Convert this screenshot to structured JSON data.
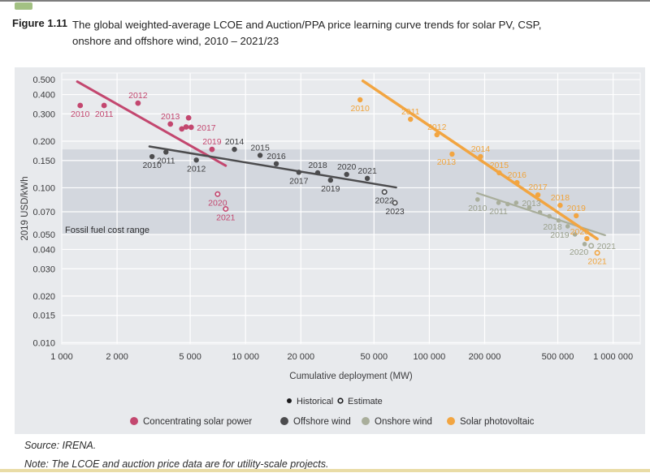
{
  "page": {
    "figure_label": "Figure 1.11",
    "title_line1": "The global weighted-average LCOE and Auction/PPA price learning curve trends for solar PV, CSP,",
    "title_line2": "onshore and offshore wind, 2010 – 2021/23",
    "source": "Source: IRENA.",
    "note": "Note: The LCOE and auction price data are for utility-scale projects."
  },
  "chart_data": {
    "type": "scatter",
    "title": "The global weighted-average LCOE and Auction/PPA price learning curve trends for solar PV, CSP, onshore and offshore wind, 2010 – 2021/23",
    "xlabel": "Cumulative deployment (MW)",
    "ylabel": "2019 USD/kWh",
    "x_scale": "log",
    "y_scale": "log",
    "x_range": [
      1000,
      1405000
    ],
    "y_range": [
      0.0098,
      0.551
    ],
    "grid": true,
    "x_ticks": [
      {
        "v": 1000,
        "label": "1 000"
      },
      {
        "v": 2000,
        "label": "2 000"
      },
      {
        "v": 5000,
        "label": "5 000"
      },
      {
        "v": 10000,
        "label": "10 000"
      },
      {
        "v": 20000,
        "label": "20 000"
      },
      {
        "v": 50000,
        "label": "50 000"
      },
      {
        "v": 100000,
        "label": "100 000"
      },
      {
        "v": 200000,
        "label": "200 000"
      },
      {
        "v": 500000,
        "label": "500 000"
      },
      {
        "v": 1000000,
        "label": "1 000 000"
      }
    ],
    "y_ticks": [
      {
        "v": 0.5,
        "label": "0.500"
      },
      {
        "v": 0.4,
        "label": "0.400"
      },
      {
        "v": 0.3,
        "label": "0.300"
      },
      {
        "v": 0.2,
        "label": "0.200"
      },
      {
        "v": 0.15,
        "label": "0.150"
      },
      {
        "v": 0.1,
        "label": "0.100"
      },
      {
        "v": 0.07,
        "label": "0.070"
      },
      {
        "v": 0.05,
        "label": "0.050"
      },
      {
        "v": 0.04,
        "label": "0.040"
      },
      {
        "v": 0.03,
        "label": "0.030"
      },
      {
        "v": 0.02,
        "label": "0.020"
      },
      {
        "v": 0.015,
        "label": "0.015"
      },
      {
        "v": 0.01,
        "label": "0.010"
      }
    ],
    "fossil_band": {
      "min": 0.05,
      "max": 0.177,
      "label": "Fossil fuel cost range",
      "color": "#d3d7de"
    },
    "marker_legend": [
      {
        "label": "Historical",
        "style": "filled"
      },
      {
        "label": "Estimate",
        "style": "open"
      }
    ],
    "series": [
      {
        "id": "csp",
        "name": "Concentrating solar power",
        "color": "#c3476f",
        "label_color": "#c3476f",
        "trend": [
          [
            1215,
            0.485
          ],
          [
            7800,
            0.139
          ]
        ],
        "points": [
          {
            "year": "2010",
            "mw": 1260,
            "usd": 0.34,
            "lp": "b"
          },
          {
            "year": "2011",
            "mw": 1700,
            "usd": 0.34,
            "lp": "b"
          },
          {
            "year": "2012",
            "mw": 2600,
            "usd": 0.352,
            "lp": "a"
          },
          {
            "year": "2013",
            "mw": 3900,
            "usd": 0.258,
            "lp": "a"
          },
          {
            "year": "",
            "mw": 4500,
            "usd": 0.24,
            "lp": ""
          },
          {
            "year": "",
            "mw": 4750,
            "usd": 0.247,
            "lp": ""
          },
          {
            "year": "",
            "mw": 4900,
            "usd": 0.283,
            "lp": ""
          },
          {
            "year": "2017",
            "mw": 5060,
            "usd": 0.246,
            "lp": "r"
          },
          {
            "year": "2019",
            "mw": 6570,
            "usd": 0.177,
            "lp": "a"
          },
          {
            "year": "2020",
            "mw": 7050,
            "usd": 0.091,
            "lp": "b",
            "est": true
          },
          {
            "year": "2021",
            "mw": 7800,
            "usd": 0.073,
            "lp": "b",
            "est": true
          }
        ]
      },
      {
        "id": "offshore",
        "name": "Offshore wind",
        "color": "#4c4c4e",
        "label_color": "#3d3d3f",
        "trend": [
          [
            3000,
            0.185
          ],
          [
            66000,
            0.1005
          ]
        ],
        "points": [
          {
            "year": "2010",
            "mw": 3100,
            "usd": 0.159,
            "lp": "b"
          },
          {
            "year": "2011",
            "mw": 3690,
            "usd": 0.17,
            "lp": "b"
          },
          {
            "year": "2012",
            "mw": 5400,
            "usd": 0.151,
            "lp": "b"
          },
          {
            "year": "2014",
            "mw": 8700,
            "usd": 0.177,
            "lp": "a"
          },
          {
            "year": "2015",
            "mw": 12000,
            "usd": 0.162,
            "lp": "a"
          },
          {
            "year": "2016",
            "mw": 14700,
            "usd": 0.143,
            "lp": "a"
          },
          {
            "year": "2017",
            "mw": 19500,
            "usd": 0.126,
            "lp": "b"
          },
          {
            "year": "2018",
            "mw": 24700,
            "usd": 0.125,
            "lp": "a"
          },
          {
            "year": "2019",
            "mw": 29000,
            "usd": 0.112,
            "lp": "b"
          },
          {
            "year": "2020",
            "mw": 35500,
            "usd": 0.122,
            "lp": "a"
          },
          {
            "year": "2021",
            "mw": 46000,
            "usd": 0.115,
            "lp": "a"
          },
          {
            "year": "2022",
            "mw": 57000,
            "usd": 0.094,
            "lp": "b",
            "est": true
          },
          {
            "year": "2023",
            "mw": 65000,
            "usd": 0.08,
            "lp": "b",
            "est": true
          }
        ]
      },
      {
        "id": "onshore",
        "name": "Onshore wind",
        "color": "#a9ae9b",
        "label_color": "#9aa08c",
        "trend": [
          [
            182000,
            0.0925
          ],
          [
            905000,
            0.0494
          ]
        ],
        "points": [
          {
            "year": "2010",
            "mw": 183000,
            "usd": 0.084,
            "lp": "b"
          },
          {
            "year": "2011",
            "mw": 238000,
            "usd": 0.08,
            "lp": "b"
          },
          {
            "year": "",
            "mw": 267000,
            "usd": 0.0785,
            "lp": ""
          },
          {
            "year": "2013",
            "mw": 297000,
            "usd": 0.08,
            "lp": "r"
          },
          {
            "year": "",
            "mw": 350000,
            "usd": 0.0745,
            "lp": ""
          },
          {
            "year": "",
            "mw": 400000,
            "usd": 0.0695,
            "lp": ""
          },
          {
            "year": "",
            "mw": 450000,
            "usd": 0.0655,
            "lp": ""
          },
          {
            "year": "",
            "mw": 505000,
            "usd": 0.0615,
            "lp": ""
          },
          {
            "year": "2018",
            "mw": 566000,
            "usd": 0.0564,
            "lp": "l"
          },
          {
            "year": "2019",
            "mw": 620000,
            "usd": 0.05,
            "lp": "l"
          },
          {
            "year": "2020",
            "mw": 700000,
            "usd": 0.0433,
            "lp": "bl"
          },
          {
            "year": "2021",
            "mw": 760000,
            "usd": 0.0422,
            "lp": "r",
            "est": true
          }
        ]
      },
      {
        "id": "pv",
        "name": "Solar photovoltaic",
        "color": "#f2a541",
        "label_color": "#f0a43c",
        "trend": [
          [
            43500,
            0.49
          ],
          [
            820000,
            0.0468
          ]
        ],
        "points": [
          {
            "year": "2010",
            "mw": 42000,
            "usd": 0.37,
            "lp": "b"
          },
          {
            "year": "2011",
            "mw": 79000,
            "usd": 0.277,
            "lp": "a"
          },
          {
            "year": "2012",
            "mw": 110000,
            "usd": 0.22,
            "lp": "a"
          },
          {
            "year": "2013",
            "mw": 133000,
            "usd": 0.165,
            "lp": "bl"
          },
          {
            "year": "2014",
            "mw": 190000,
            "usd": 0.159,
            "lp": "a"
          },
          {
            "year": "2015",
            "mw": 240000,
            "usd": 0.125,
            "lp": "a"
          },
          {
            "year": "2016",
            "mw": 300000,
            "usd": 0.108,
            "lp": "a"
          },
          {
            "year": "2017",
            "mw": 390000,
            "usd": 0.09,
            "lp": "a"
          },
          {
            "year": "2018",
            "mw": 515000,
            "usd": 0.077,
            "lp": "a"
          },
          {
            "year": "2019",
            "mw": 630000,
            "usd": 0.066,
            "lp": "a"
          },
          {
            "year": "2020",
            "mw": 720000,
            "usd": 0.047,
            "lp": "al"
          },
          {
            "year": "2021",
            "mw": 820000,
            "usd": 0.038,
            "lp": "b",
            "est": true
          }
        ]
      }
    ]
  }
}
